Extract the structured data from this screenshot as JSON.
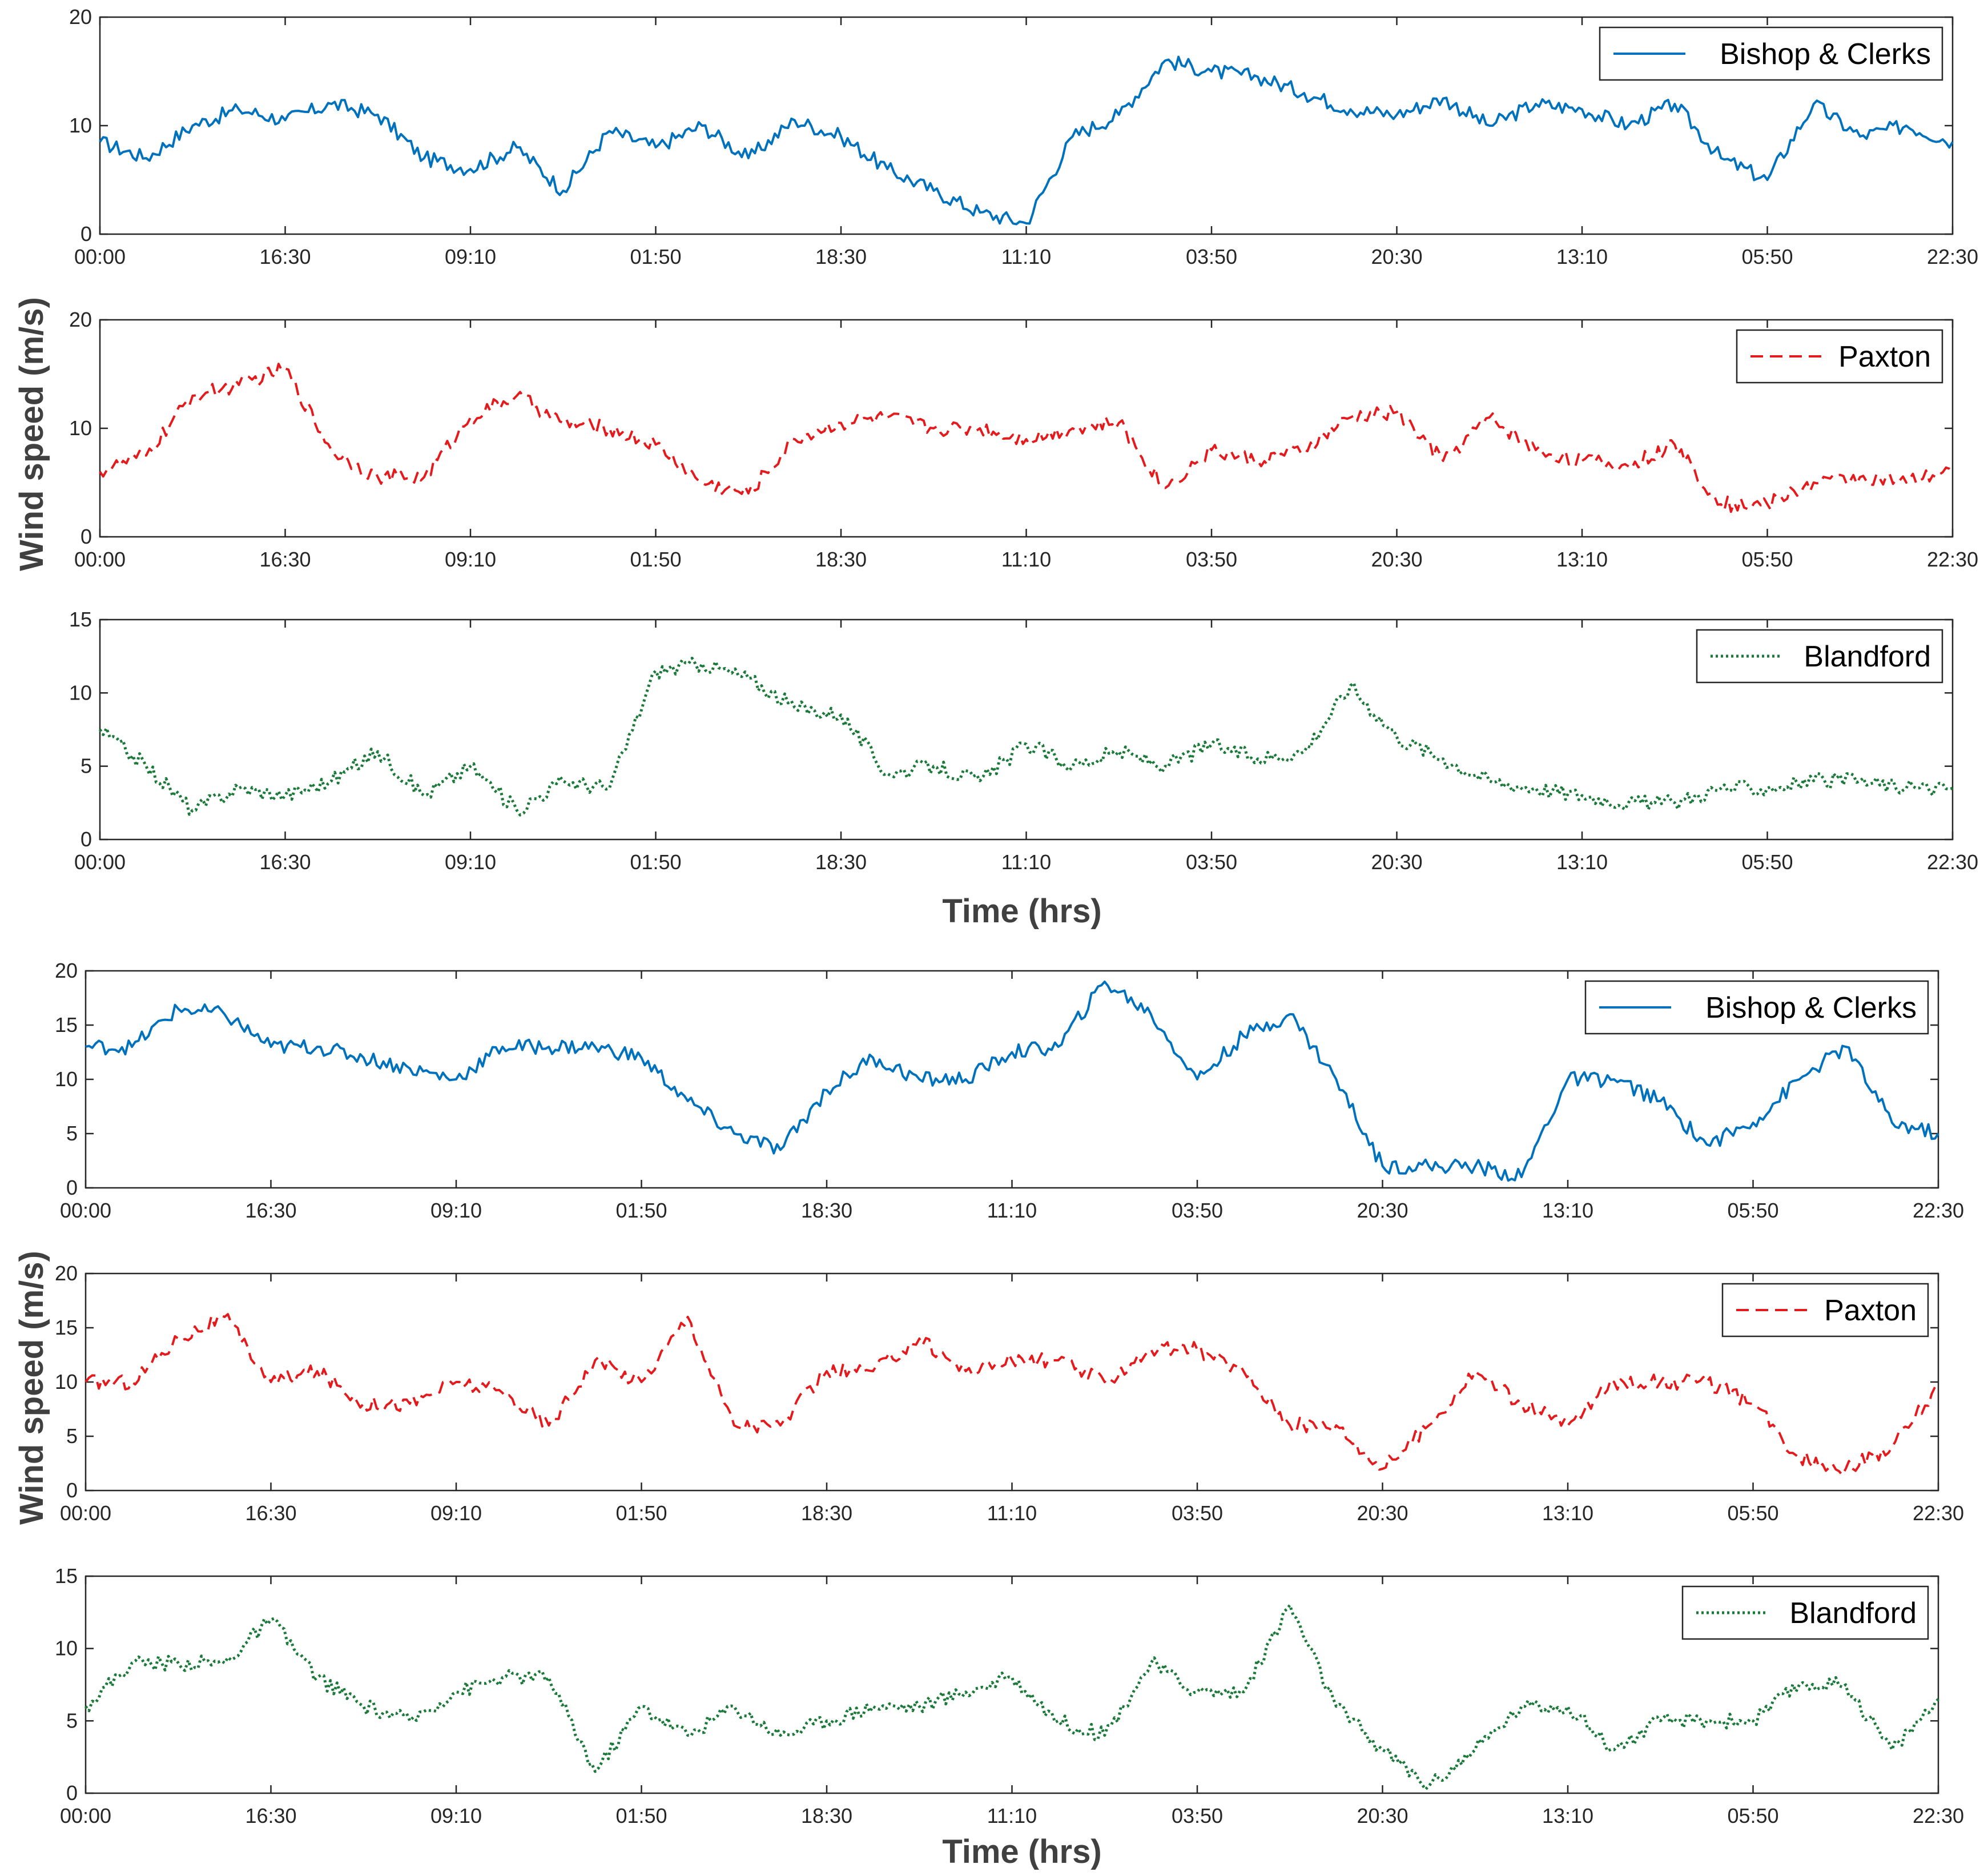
{
  "chart_data": [
    {
      "type": "line",
      "group": 1,
      "xlabel": "",
      "ylabel": "",
      "ylim": [
        0,
        20
      ],
      "yticks": [
        0,
        10,
        20
      ],
      "xticks": [
        "00:00",
        "16:30",
        "09:10",
        "01:50",
        "18:30",
        "11:10",
        "03:50",
        "20:30",
        "13:10",
        "05:50",
        "22:30"
      ],
      "grid": false,
      "legend": "top-right",
      "series": [
        {
          "name": "Bishop & Clerks",
          "color": "#0072bd",
          "style": "solid",
          "x": [
            0,
            0.25,
            0.5,
            0.75,
            1,
            1.25,
            1.5,
            1.75,
            2,
            2.25,
            2.5,
            2.75,
            3,
            3.25,
            3.5,
            3.75,
            4,
            4.25,
            4.5,
            4.75,
            5,
            5.25,
            5.5,
            5.75,
            6,
            6.25,
            6.5,
            6.75,
            7,
            7.25,
            7.5,
            7.75,
            8,
            8.25,
            8.5,
            8.75,
            9,
            9.25,
            9.5,
            9.75,
            10
          ],
          "y": [
            8.5,
            7,
            10,
            11.5,
            10.5,
            12,
            11,
            7,
            6,
            8,
            4,
            9.5,
            8,
            10,
            7,
            10.5,
            9,
            6,
            4,
            2,
            1,
            9,
            11,
            16,
            15,
            14.5,
            13,
            11.5,
            11,
            12.5,
            10,
            12,
            11.5,
            10,
            12,
            7,
            5,
            12,
            9,
            10,
            8.5
          ]
        }
      ]
    },
    {
      "type": "line",
      "group": 1,
      "xlabel": "",
      "ylabel": "",
      "ylim": [
        0,
        20
      ],
      "yticks": [
        0,
        10,
        20
      ],
      "xticks": [
        "00:00",
        "16:30",
        "09:10",
        "01:50",
        "18:30",
        "11:10",
        "03:50",
        "20:30",
        "13:10",
        "05:50",
        "22:30"
      ],
      "grid": false,
      "legend": "top-right",
      "series": [
        {
          "name": "Paxton",
          "color": "#e41a1c",
          "style": "dashed",
          "x": [
            0,
            0.25,
            0.5,
            0.75,
            1,
            1.25,
            1.5,
            1.75,
            2,
            2.25,
            2.5,
            2.75,
            3,
            3.25,
            3.5,
            3.75,
            4,
            4.25,
            4.5,
            4.75,
            5,
            5.25,
            5.5,
            5.75,
            6,
            6.25,
            6.5,
            6.75,
            7,
            7.25,
            7.5,
            7.75,
            8,
            8.25,
            8.5,
            8.75,
            9,
            9.25,
            9.5,
            9.75,
            10
          ],
          "y": [
            6,
            7.5,
            13,
            14,
            15.5,
            8,
            5.5,
            5.5,
            11,
            13,
            10.5,
            10,
            8.5,
            5,
            4,
            9,
            10.5,
            11,
            10,
            10,
            9,
            10,
            10.5,
            4.5,
            8,
            7,
            8,
            11,
            11.5,
            7,
            11,
            8,
            7,
            6.5,
            8.5,
            3,
            3,
            5,
            5.5,
            5,
            6
          ]
        }
      ]
    },
    {
      "type": "line",
      "group": 1,
      "xlabel": "",
      "ylabel": "",
      "ylim": [
        0,
        15
      ],
      "yticks": [
        0,
        5,
        10,
        15
      ],
      "xticks": [
        "00:00",
        "16:30",
        "09:10",
        "01:50",
        "18:30",
        "11:10",
        "03:50",
        "20:30",
        "13:10",
        "05:50",
        "22:30"
      ],
      "grid": false,
      "legend": "top-right",
      "series": [
        {
          "name": "Blandford",
          "color": "#1b7a3a",
          "style": "dotted",
          "x": [
            0,
            0.25,
            0.5,
            0.75,
            1,
            1.25,
            1.5,
            1.75,
            2,
            2.25,
            2.5,
            2.75,
            3,
            3.25,
            3.5,
            3.75,
            4,
            4.25,
            4.5,
            4.75,
            5,
            5.25,
            5.5,
            5.75,
            6,
            6.25,
            6.5,
            6.75,
            7,
            7.25,
            7.5,
            7.75,
            8,
            8.25,
            8.5,
            8.75,
            9,
            9.25,
            9.5,
            9.75,
            10
          ],
          "y": [
            7.5,
            5,
            2,
            3.5,
            3,
            4,
            6,
            3,
            5,
            2,
            4,
            3.5,
            11.5,
            12,
            11,
            9,
            8.5,
            4.5,
            5,
            4,
            6.5,
            5,
            6,
            5,
            6.5,
            5.5,
            6,
            10.5,
            7,
            5.5,
            4,
            3.5,
            3,
            2.5,
            2.5,
            3.5,
            3.5,
            4,
            4,
            3.5,
            3.5
          ]
        }
      ]
    },
    {
      "type": "line",
      "group": 2,
      "xlabel": "",
      "ylabel": "",
      "ylim": [
        0,
        20
      ],
      "yticks": [
        0,
        5,
        10,
        15,
        20
      ],
      "xticks": [
        "00:00",
        "16:30",
        "09:10",
        "01:50",
        "18:30",
        "11:10",
        "03:50",
        "20:30",
        "13:10",
        "05:50",
        "22:30"
      ],
      "grid": false,
      "legend": "top-right",
      "series": [
        {
          "name": "Bishop & Clerks",
          "color": "#0072bd",
          "style": "solid",
          "x": [
            0,
            0.25,
            0.5,
            0.75,
            1,
            1.25,
            1.5,
            1.75,
            2,
            2.25,
            2.5,
            2.75,
            3,
            3.25,
            3.5,
            3.75,
            4,
            4.25,
            4.5,
            4.75,
            5,
            5.25,
            5.5,
            5.75,
            6,
            6.25,
            6.5,
            6.75,
            7,
            7.25,
            7.5,
            7.75,
            8,
            8.25,
            8.5,
            8.75,
            9,
            9.25,
            9.5,
            9.75,
            10
          ],
          "y": [
            13,
            13,
            16.5,
            16,
            13,
            13,
            12,
            11,
            10,
            13,
            13,
            13,
            12,
            8,
            5,
            3.5,
            9,
            12,
            10,
            10,
            12.5,
            13,
            19,
            16,
            10,
            14,
            16,
            10,
            2,
            2,
            2,
            1,
            10,
            10,
            8,
            4,
            6,
            10,
            13,
            6,
            5
          ]
        }
      ]
    },
    {
      "type": "line",
      "group": 2,
      "xlabel": "",
      "ylabel": "",
      "ylim": [
        0,
        20
      ],
      "yticks": [
        0,
        5,
        10,
        15,
        20
      ],
      "xticks": [
        "00:00",
        "16:30",
        "09:10",
        "01:50",
        "18:30",
        "11:10",
        "03:50",
        "20:30",
        "13:10",
        "05:50",
        "22:30"
      ],
      "grid": false,
      "legend": "top-right",
      "series": [
        {
          "name": "Paxton",
          "color": "#e41a1c",
          "style": "dashed",
          "x": [
            0,
            0.25,
            0.5,
            0.75,
            1,
            1.25,
            1.5,
            1.75,
            2,
            2.25,
            2.5,
            2.75,
            3,
            3.25,
            3.5,
            3.75,
            4,
            4.25,
            4.5,
            4.75,
            5,
            5.25,
            5.5,
            5.75,
            6,
            6.25,
            6.5,
            6.75,
            7,
            7.25,
            7.5,
            7.75,
            8,
            8.25,
            8.5,
            8.75,
            9,
            9.25,
            9.5,
            9.75,
            10
          ],
          "y": [
            10,
            10,
            14,
            16,
            10,
            11,
            8,
            8,
            10,
            9,
            6,
            12,
            10,
            16,
            6,
            6,
            11,
            11,
            14,
            11,
            12,
            12,
            10,
            13,
            13,
            11,
            6,
            6,
            2,
            6,
            11,
            8,
            6,
            10,
            10,
            10,
            8,
            3,
            2,
            4,
            9.5
          ]
        }
      ]
    },
    {
      "type": "line",
      "group": 2,
      "xlabel": "",
      "ylabel": "",
      "ylim": [
        0,
        15
      ],
      "yticks": [
        0,
        5,
        10,
        15
      ],
      "xticks": [
        "00:00",
        "16:30",
        "09:10",
        "01:50",
        "18:30",
        "11:10",
        "03:50",
        "20:30",
        "13:10",
        "05:50",
        "22:30"
      ],
      "grid": false,
      "legend": "top-right",
      "series": [
        {
          "name": "Blandford",
          "color": "#1b7a3a",
          "style": "dotted",
          "x": [
            0,
            0.25,
            0.5,
            0.75,
            1,
            1.25,
            1.5,
            1.75,
            2,
            2.25,
            2.5,
            2.75,
            3,
            3.25,
            3.5,
            3.75,
            4,
            4.25,
            4.5,
            4.75,
            5,
            5.25,
            5.5,
            5.75,
            6,
            6.25,
            6.5,
            6.75,
            7,
            7.25,
            7.5,
            7.75,
            8,
            8.25,
            8.5,
            8.75,
            9,
            9.25,
            9.5,
            9.75,
            10
          ],
          "y": [
            6,
            9,
            9,
            9,
            12,
            8,
            6,
            5,
            7,
            8,
            8,
            1.5,
            6,
            4,
            6,
            4,
            5,
            6,
            6,
            7,
            8,
            5,
            4,
            9,
            7,
            7,
            13,
            6,
            3,
            0.5,
            3,
            6,
            6,
            3,
            5,
            5,
            5,
            7.5,
            7.5,
            3,
            6.5
          ]
        }
      ]
    }
  ],
  "figure_labels": {
    "group1": {
      "ylabel": "Wind speed (m/s)",
      "xlabel": "Time (hrs)"
    },
    "group2": {
      "ylabel": "Wind speed (m/s)",
      "xlabel": "Time (hrs)"
    }
  }
}
